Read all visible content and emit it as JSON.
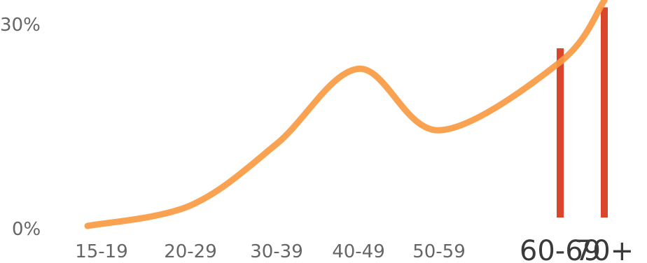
{
  "chart_data": {
    "type": "line",
    "categories": [
      "15-19",
      "20-29",
      "30-39",
      "40-49",
      "50-59",
      "60-69",
      "70+"
    ],
    "highlighted_categories": [
      "60-69",
      "70+"
    ],
    "values": [
      0,
      3,
      12,
      23,
      14,
      24,
      33
    ],
    "ylim": [
      0,
      30
    ],
    "yticks": [
      "0%",
      "30%"
    ],
    "highlight_bars": [
      {
        "category": "60-69",
        "value": 26
      },
      {
        "category": "70+",
        "value": 32
      }
    ],
    "grid": false,
    "colors": {
      "line": "#f79a43",
      "highlight_bar": "#d9462b",
      "tick_text": "#666666",
      "highlight_text": "#3a3a3a"
    }
  }
}
